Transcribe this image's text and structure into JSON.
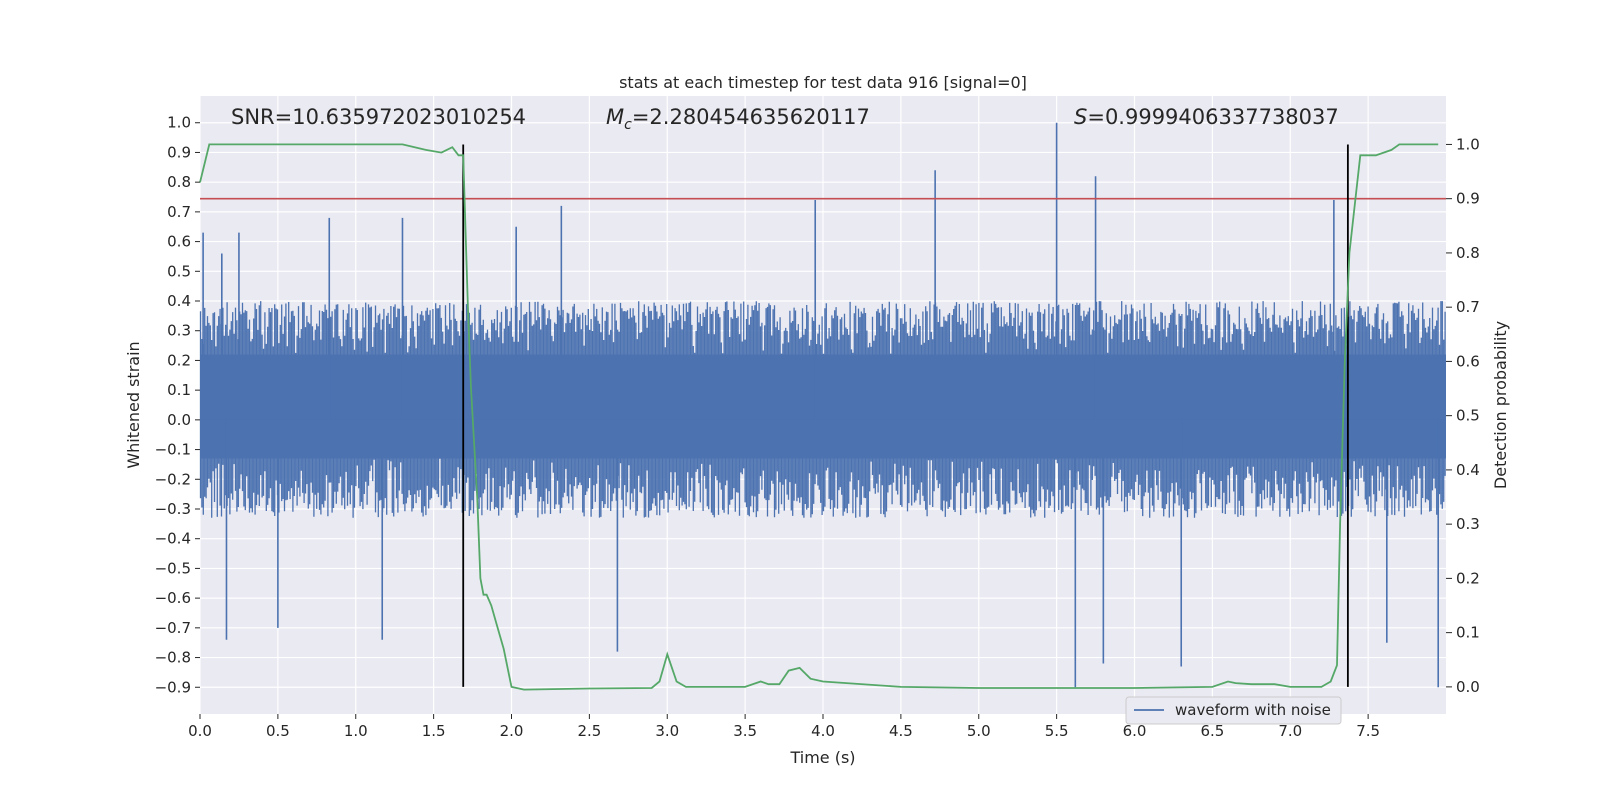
{
  "chart_data": {
    "type": "line",
    "title": "stats at each timestep for test data 916 [signal=0]",
    "xlabel": "Time (s)",
    "ylabel_left": "Whitened strain",
    "ylabel_right": "Detection probability",
    "xlim": [
      0.0,
      8.0
    ],
    "ylim_left": [
      -0.99,
      1.09
    ],
    "ylim_right": [
      -0.05,
      1.0893
    ],
    "x_ticks": [
      "0.0",
      "0.5",
      "1.0",
      "1.5",
      "2.0",
      "2.5",
      "3.0",
      "3.5",
      "4.0",
      "4.5",
      "5.0",
      "5.5",
      "6.0",
      "6.5",
      "7.0",
      "7.5"
    ],
    "y_left_ticks": [
      "1.0",
      "0.9",
      "0.8",
      "0.7",
      "0.6",
      "0.5",
      "0.4",
      "0.3",
      "0.2",
      "0.1",
      "0.0",
      "−0.1",
      "−0.2",
      "−0.3",
      "−0.4",
      "−0.5",
      "−0.6",
      "−0.7",
      "−0.8",
      "−0.9"
    ],
    "y_right_ticks": [
      "1.0",
      "0.9",
      "0.8",
      "0.7",
      "0.6",
      "0.5",
      "0.4",
      "0.3",
      "0.2",
      "0.1",
      "0.0"
    ],
    "grid": true,
    "legend_position": "bottom-right",
    "legend": [
      {
        "name": "waveform with noise",
        "color": "#4c72b0"
      }
    ],
    "annotations": {
      "snr": "SNR=10.635972023010254",
      "mc_symbol": "M",
      "mc_sub": "c",
      "mc_value": "=2.280454635620117",
      "s_symbol": "S",
      "s_value": "=0.9999406337738037"
    },
    "threshold_probability": 0.9,
    "vertical_lines_time": [
      1.69,
      7.37
    ],
    "waveform": {
      "name": "waveform with noise",
      "color": "#4c72b0",
      "typical_band": [
        -0.33,
        0.4
      ],
      "max": 1.0,
      "min": -0.9,
      "spikes": [
        {
          "x": 0.02,
          "y": 0.63
        },
        {
          "x": 0.14,
          "y": 0.56
        },
        {
          "x": 0.17,
          "y": -0.74
        },
        {
          "x": 0.25,
          "y": 0.63
        },
        {
          "x": 0.5,
          "y": -0.7
        },
        {
          "x": 0.83,
          "y": 0.68
        },
        {
          "x": 1.17,
          "y": -0.74
        },
        {
          "x": 1.3,
          "y": 0.68
        },
        {
          "x": 2.03,
          "y": 0.65
        },
        {
          "x": 2.32,
          "y": 0.72
        },
        {
          "x": 2.68,
          "y": -0.78
        },
        {
          "x": 3.95,
          "y": 0.74
        },
        {
          "x": 4.72,
          "y": 0.84
        },
        {
          "x": 5.5,
          "y": 1.0
        },
        {
          "x": 5.62,
          "y": -0.9
        },
        {
          "x": 5.75,
          "y": 0.82
        },
        {
          "x": 5.8,
          "y": -0.82
        },
        {
          "x": 6.3,
          "y": -0.83
        },
        {
          "x": 7.28,
          "y": 0.74
        },
        {
          "x": 7.62,
          "y": -0.75
        },
        {
          "x": 7.95,
          "y": -0.9
        }
      ]
    },
    "probability": {
      "color": "#55a868",
      "x": [
        0.0,
        0.06,
        0.2,
        0.5,
        1.0,
        1.3,
        1.45,
        1.55,
        1.62,
        1.66,
        1.69,
        1.72,
        1.74,
        1.78,
        1.8,
        1.82,
        1.84,
        1.87,
        1.9,
        1.95,
        2.0,
        2.08,
        2.5,
        2.9,
        2.95,
        3.0,
        3.06,
        3.12,
        3.5,
        3.6,
        3.65,
        3.72,
        3.78,
        3.85,
        3.92,
        4.0,
        4.5,
        5.0,
        6.0,
        6.5,
        6.6,
        6.65,
        6.75,
        6.9,
        7.0,
        7.2,
        7.26,
        7.3,
        7.32,
        7.35,
        7.38,
        7.45,
        7.55,
        7.65,
        7.7,
        7.95
      ],
      "y": [
        0.93,
        1.0,
        1.0,
        1.0,
        1.0,
        1.0,
        0.99,
        0.985,
        0.995,
        0.98,
        0.98,
        0.7,
        0.55,
        0.35,
        0.2,
        0.17,
        0.17,
        0.15,
        0.12,
        0.07,
        0.0,
        -0.005,
        -0.003,
        -0.002,
        0.01,
        0.06,
        0.01,
        0.0,
        0.0,
        0.01,
        0.005,
        0.005,
        0.03,
        0.035,
        0.015,
        0.01,
        0.0,
        -0.002,
        -0.002,
        0.0,
        0.01,
        0.007,
        0.005,
        0.005,
        0.0,
        0.0,
        0.01,
        0.04,
        0.3,
        0.6,
        0.8,
        0.98,
        0.98,
        0.99,
        1.0,
        1.0
      ]
    },
    "threshold_color": "#c44e52"
  }
}
